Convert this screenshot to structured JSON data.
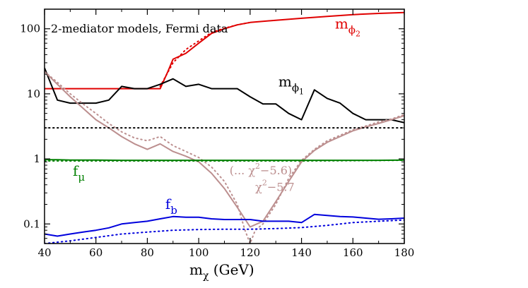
{
  "chart_data": {
    "type": "line",
    "title": "2-mediator models, Fermi data",
    "xlabel": "m_χ (GeV)",
    "xlabel_parts": {
      "main": "m",
      "sub": "χ",
      "unit": " (GeV)"
    },
    "ylabel": "",
    "xlim": [
      40,
      180
    ],
    "ylim": [
      0.05,
      200
    ],
    "yscale": "log",
    "x_ticks": [
      40,
      60,
      80,
      100,
      120,
      140,
      160,
      180
    ],
    "x_tick_labels": [
      "40",
      "60",
      "80",
      "100",
      "120",
      "140",
      "160",
      "180"
    ],
    "y_ticks": [
      0.1,
      1,
      10,
      100
    ],
    "y_tick_labels": [
      "0.1",
      "1",
      "10",
      "100"
    ],
    "series": [
      {
        "name": "m_phi2",
        "color": "#e00000",
        "style": "solid",
        "x": [
          40,
          85,
          88,
          90,
          95,
          100,
          105,
          110,
          115,
          120,
          130,
          140,
          150,
          160,
          170,
          180
        ],
        "values": [
          12,
          12,
          22,
          34,
          42,
          60,
          85,
          100,
          115,
          125,
          135,
          145,
          155,
          165,
          172,
          178
        ]
      },
      {
        "name": "m_phi2_dotted",
        "color": "#e00000",
        "style": "dotted",
        "x": [
          85,
          90,
          95,
          100,
          105,
          110,
          115,
          120
        ],
        "values": [
          13,
          30,
          48,
          65,
          88,
          102,
          115,
          125
        ]
      },
      {
        "name": "m_phi1",
        "color": "#000000",
        "style": "solid",
        "x": [
          40,
          45,
          50,
          55,
          60,
          65,
          70,
          75,
          80,
          85,
          90,
          95,
          100,
          105,
          110,
          115,
          120,
          125,
          130,
          135,
          140,
          145,
          150,
          155,
          160,
          165,
          170,
          175,
          180
        ],
        "values": [
          25,
          8,
          7.2,
          7.2,
          7.2,
          8,
          13,
          12,
          12,
          14,
          17,
          13,
          14,
          12,
          12,
          12,
          9,
          7,
          7,
          5,
          4,
          11.5,
          8.5,
          7.2,
          5,
          4,
          4,
          4,
          3.6
        ]
      },
      {
        "name": "chi2_5.7",
        "color": "#bc8f8f",
        "style": "solid",
        "x": [
          40,
          45,
          50,
          55,
          60,
          65,
          70,
          75,
          80,
          85,
          90,
          95,
          100,
          105,
          110,
          115,
          120,
          125,
          130,
          135,
          140,
          145,
          150,
          155,
          160,
          165,
          170,
          175,
          180
        ],
        "values": [
          22,
          14,
          9,
          6,
          4,
          3,
          2.2,
          1.7,
          1.4,
          1.7,
          1.3,
          1.1,
          0.9,
          0.6,
          0.35,
          0.18,
          0.09,
          0.11,
          0.22,
          0.45,
          0.9,
          1.35,
          1.8,
          2.2,
          2.7,
          3.1,
          3.5,
          4,
          4.6
        ]
      },
      {
        "name": "chi2_5.6",
        "color": "#bc8f8f",
        "style": "dotted",
        "x": [
          40,
          45,
          50,
          55,
          60,
          65,
          70,
          75,
          80,
          85,
          90,
          95,
          100,
          105,
          110,
          115,
          118,
          120,
          122,
          125,
          130,
          135,
          140,
          145,
          150,
          155,
          160,
          165,
          170,
          175,
          180
        ],
        "values": [
          22,
          15,
          10,
          7,
          5,
          3.5,
          2.6,
          2.1,
          1.9,
          2.2,
          1.6,
          1.3,
          1.05,
          0.75,
          0.45,
          0.2,
          0.08,
          0.05,
          0.08,
          0.1,
          0.2,
          0.5,
          0.95,
          1.4,
          1.9,
          2.3,
          2.8,
          3.2,
          3.7,
          4.1,
          4.8
        ]
      },
      {
        "name": "f_mu",
        "color": "#008000",
        "style": "solid",
        "x": [
          40,
          45,
          50,
          60,
          70,
          80,
          90,
          100,
          110,
          120,
          130,
          140,
          150,
          160,
          170,
          180
        ],
        "values": [
          0.97,
          0.97,
          0.96,
          0.96,
          0.95,
          0.95,
          0.95,
          0.95,
          0.95,
          0.95,
          0.95,
          0.95,
          0.95,
          0.95,
          0.95,
          0.96
        ]
      },
      {
        "name": "f_mu_dotted",
        "color": "#008000",
        "style": "dotted",
        "x": [
          40,
          60,
          80,
          100,
          120,
          140,
          160,
          180
        ],
        "values": [
          0.93,
          0.93,
          0.93,
          0.93,
          0.93,
          0.93,
          0.94,
          0.95
        ]
      },
      {
        "name": "f_b",
        "color": "#0000dd",
        "style": "solid",
        "x": [
          40,
          45,
          50,
          55,
          60,
          65,
          70,
          75,
          80,
          85,
          90,
          95,
          100,
          105,
          110,
          115,
          120,
          125,
          130,
          135,
          140,
          145,
          150,
          155,
          160,
          165,
          170,
          175,
          180
        ],
        "values": [
          0.07,
          0.065,
          0.07,
          0.075,
          0.08,
          0.087,
          0.1,
          0.105,
          0.11,
          0.12,
          0.13,
          0.127,
          0.127,
          0.12,
          0.117,
          0.117,
          0.117,
          0.11,
          0.11,
          0.11,
          0.105,
          0.14,
          0.135,
          0.13,
          0.128,
          0.123,
          0.118,
          0.12,
          0.123
        ]
      },
      {
        "name": "f_b_dotted",
        "color": "#0000dd",
        "style": "dotted",
        "x": [
          40,
          50,
          60,
          70,
          80,
          90,
          100,
          110,
          120,
          130,
          140,
          150,
          160,
          170,
          180
        ],
        "values": [
          0.05,
          0.055,
          0.062,
          0.07,
          0.075,
          0.08,
          0.082,
          0.083,
          0.083,
          0.085,
          0.088,
          0.095,
          0.105,
          0.11,
          0.115
        ]
      },
      {
        "name": "reference_3",
        "color": "#000000",
        "style": "dotted",
        "x": [
          40,
          180
        ],
        "values": [
          3,
          3
        ]
      }
    ],
    "annotations": [
      {
        "id": "mphi2",
        "parts": {
          "main": "m",
          "sub": "ϕ",
          "subsub": "2"
        },
        "color": "#e00000",
        "x": 153,
        "y": 100
      },
      {
        "id": "mphi1",
        "parts": {
          "main": "m",
          "sub": "ϕ",
          "subsub": "1"
        },
        "color": "#000000",
        "x": 131,
        "y": 13
      },
      {
        "id": "fmu",
        "parts": {
          "main": "f",
          "sub": "μ"
        },
        "color": "#008000",
        "x": 51,
        "y": 0.55
      },
      {
        "id": "fb",
        "parts": {
          "main": "f",
          "sub": "b"
        },
        "color": "#0000dd",
        "x": 87,
        "y": 0.17
      },
      {
        "id": "chi56",
        "parts": {
          "prefix": "(... χ",
          "sup": "2",
          "suffix": "−5.6)"
        },
        "color": "#bc8f8f",
        "x": 112,
        "y": 0.58
      },
      {
        "id": "chi57",
        "parts": {
          "prefix": "χ",
          "sup": "2",
          "suffix": "−5.7"
        },
        "color": "#bc8f8f",
        "x": 122,
        "y": 0.32
      }
    ]
  }
}
